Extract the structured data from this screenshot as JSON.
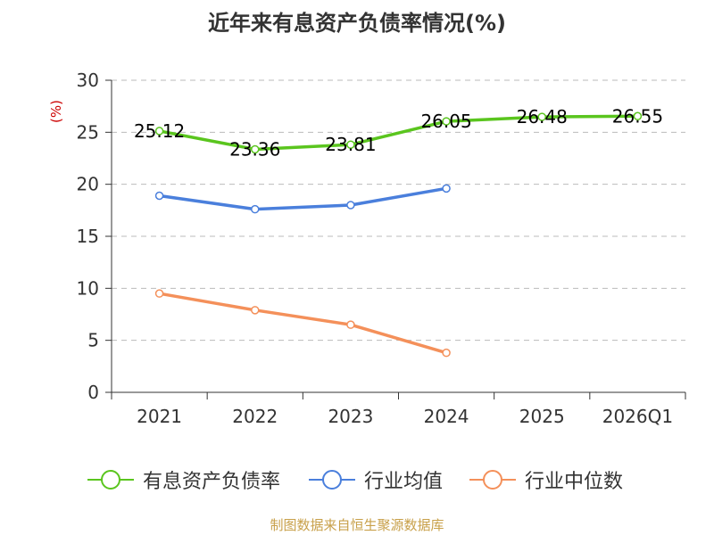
{
  "title": "近年来有息资产负债率情况(%)",
  "source": "制图数据来自恒生聚源数据库",
  "colors": {
    "series1": "#5ac51e",
    "series2": "#4a7fdc",
    "series3": "#f4905a",
    "axis": "#333333",
    "grid": "#bbbbbb",
    "ylabel": "#cc0000",
    "source": "#c8a04a"
  },
  "chart_data": {
    "type": "line",
    "title": "近年来有息资产负债率情况(%)",
    "ylabel": "(%)",
    "xlabel": "",
    "categories": [
      "2021",
      "2022",
      "2023",
      "2024",
      "2025",
      "2026Q1"
    ],
    "ylim": [
      0,
      30
    ],
    "yticks": [
      0,
      5,
      10,
      15,
      20,
      25,
      30
    ],
    "grid": true,
    "legend_position": "bottom",
    "series": [
      {
        "name": "有息资产负债率",
        "color": "#5ac51e",
        "values": [
          25.12,
          23.36,
          23.81,
          26.05,
          26.48,
          26.55
        ],
        "labels": [
          "25.12",
          "23.36",
          "23.81",
          "26.05",
          "26.48",
          "26.55"
        ]
      },
      {
        "name": "行业均值",
        "color": "#4a7fdc",
        "values": [
          18.9,
          17.6,
          18.0,
          19.6,
          null,
          null
        ]
      },
      {
        "name": "行业中位数",
        "color": "#f4905a",
        "values": [
          9.5,
          7.9,
          6.5,
          3.8,
          null,
          null
        ]
      }
    ]
  }
}
